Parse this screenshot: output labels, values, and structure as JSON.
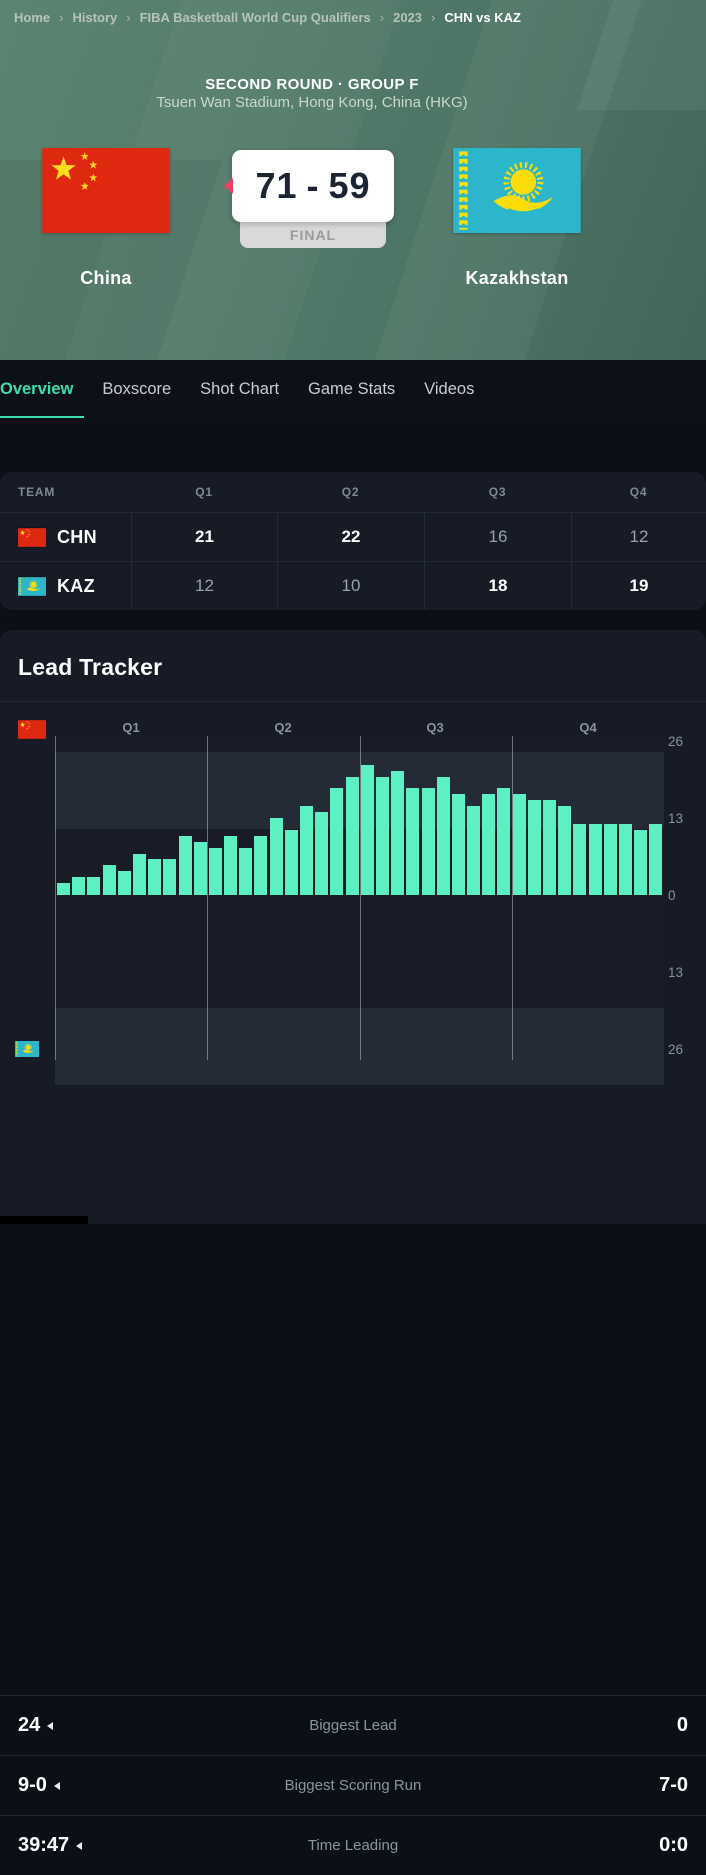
{
  "breadcrumb": {
    "separator": "›",
    "items": [
      "Home",
      "History",
      "FIBA Basketball World Cup Qualifiers",
      "2023"
    ],
    "current": "CHN vs KAZ"
  },
  "hero": {
    "round": "SECOND ROUND · GROUP F",
    "venue": "Tsuen Wan Stadium, Hong Kong, China (HKG)",
    "home_team": "China",
    "away_team": "Kazakhstan",
    "home_score": "71",
    "score_separator": "-",
    "away_score": "59",
    "status": "FINAL"
  },
  "tabs": [
    {
      "label": "Overview",
      "active": true
    },
    {
      "label": "Boxscore",
      "active": false
    },
    {
      "label": "Shot Chart",
      "active": false
    },
    {
      "label": "Game Stats",
      "active": false
    },
    {
      "label": "Videos",
      "active": false
    }
  ],
  "quarters_table": {
    "headers": [
      "TEAM",
      "Q1",
      "Q2",
      "Q3",
      "Q4"
    ],
    "rows": [
      {
        "team": "CHN",
        "flag": "china-flag",
        "q1": "21",
        "q2": "22",
        "q3": "16",
        "q4": "12",
        "bold": [
          true,
          true,
          false,
          false
        ]
      },
      {
        "team": "KAZ",
        "flag": "kazakhstan-flag",
        "q1": "12",
        "q2": "10",
        "q3": "18",
        "q4": "19",
        "bold": [
          false,
          false,
          true,
          true
        ]
      }
    ]
  },
  "lead_tracker": {
    "title": "Lead Tracker"
  },
  "chart_data": {
    "type": "bar",
    "title": "Lead Tracker",
    "description": "Point lead per minute of the game; positive bars = CHN leading, negative side = KAZ leading",
    "x_quarter_labels": [
      "Q1",
      "Q2",
      "Q3",
      "Q4"
    ],
    "y_tick_labels": [
      "26",
      "13",
      "0",
      "13",
      "26"
    ],
    "ylim": [
      -26,
      26
    ],
    "grid": "quarter-dividers",
    "legend_top": "CHN",
    "legend_bottom": "KAZ",
    "bar_color": "#5cf0c2",
    "series": [
      {
        "name": "CHN lead",
        "values": [
          2,
          3,
          3,
          5,
          4,
          7,
          6,
          6,
          10,
          9,
          8,
          10,
          8,
          10,
          13,
          11,
          15,
          14,
          18,
          20,
          22,
          20,
          21,
          18,
          18,
          20,
          17,
          15,
          17,
          18,
          17,
          16,
          16,
          15,
          12,
          12,
          12,
          12,
          11,
          12
        ]
      }
    ]
  },
  "stats": [
    {
      "home": "24",
      "label": "Biggest Lead",
      "away": "0",
      "leader": "home"
    },
    {
      "home": "9-0",
      "label": "Biggest Scoring Run",
      "away": "7-0",
      "leader": "home"
    },
    {
      "home": "39:47",
      "label": "Time Leading",
      "away": "0:0",
      "leader": "home"
    }
  ],
  "colors": {
    "accent_teal": "#3edcb2",
    "bar_mint": "#5cf0c2",
    "winner_pink": "#f23f63",
    "hero_green": "#4f7a6a",
    "china_red": "#de2910",
    "flag_gold": "#ffde1e",
    "kazakhstan_cyan": "#2bb6c9",
    "card_bg": "#161b25",
    "page_bg": "#0b1017"
  }
}
